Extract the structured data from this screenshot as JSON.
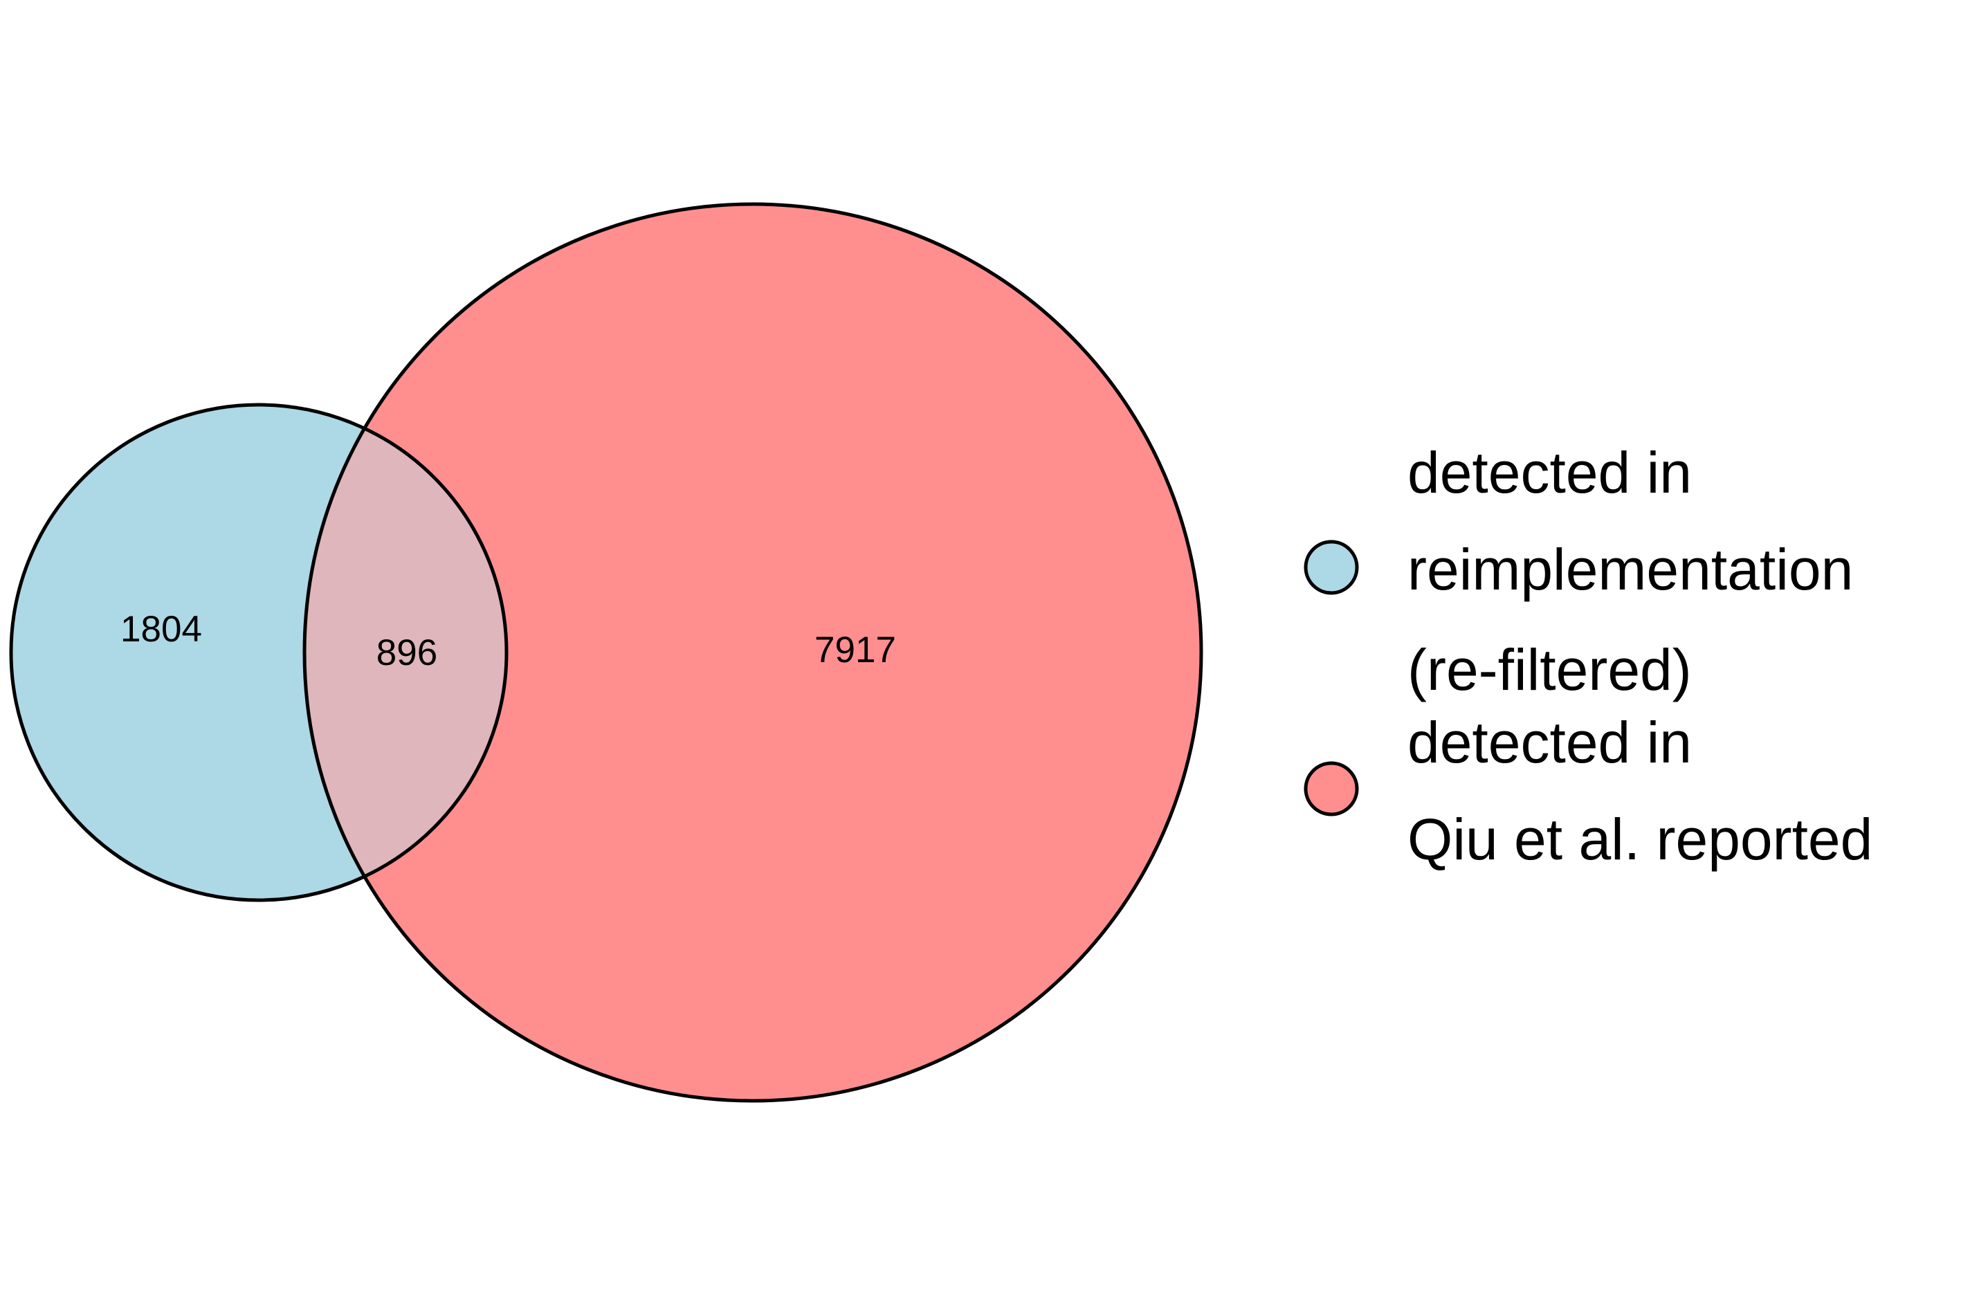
{
  "chart_data": {
    "type": "venn",
    "sets": [
      {
        "name_lines": [
          "detected in",
          "reimplementation",
          "(re-filtered)"
        ],
        "only_count": "1804",
        "color": "#add8e6"
      },
      {
        "name_lines": [
          "detected in",
          "Qiu et al. reported"
        ],
        "only_count": "7917",
        "color": "#ff8f8f"
      }
    ],
    "overlap_count": "896",
    "overlap_color": "#dfb6bb",
    "outline_color": "#000000"
  }
}
